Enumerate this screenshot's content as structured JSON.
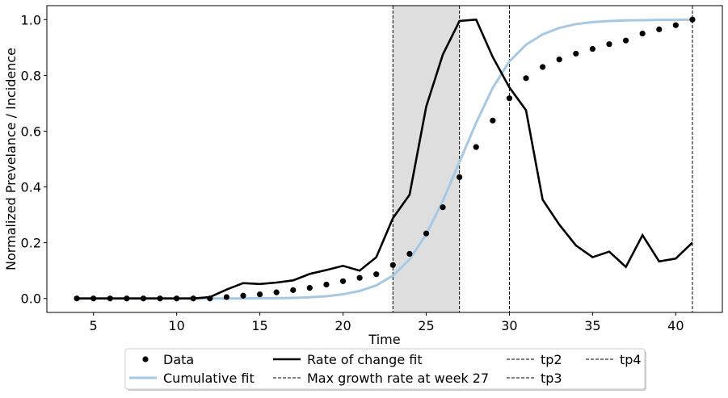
{
  "chart_data": {
    "type": "line",
    "xlabel": "Time",
    "ylabel": "Normalized Prevelance / Incidence",
    "xlim": [
      2.2,
      42.8
    ],
    "ylim": [
      -0.05,
      1.05
    ],
    "xticks": [
      5,
      10,
      15,
      20,
      25,
      30,
      35,
      40
    ],
    "yticks": [
      0.0,
      0.2,
      0.4,
      0.6,
      0.8,
      1.0
    ],
    "xtick_labels": [
      "5",
      "10",
      "15",
      "20",
      "25",
      "30",
      "35",
      "40"
    ],
    "ytick_labels": [
      "0.0",
      "0.2",
      "0.4",
      "0.6",
      "0.8",
      "1.0"
    ],
    "shaded_region": {
      "x": [
        23,
        27
      ],
      "color": "#dedede"
    },
    "vlines": [
      23,
      27,
      30,
      41
    ],
    "series": [
      {
        "name": "Data",
        "kind": "scatter",
        "color": "#000000",
        "x": [
          4,
          5,
          6,
          7,
          8,
          9,
          10,
          11,
          12,
          13,
          14,
          15,
          16,
          17,
          18,
          19,
          20,
          21,
          22,
          23,
          24,
          25,
          26,
          27,
          28,
          29,
          30,
          31,
          32,
          33,
          34,
          35,
          36,
          37,
          38,
          39,
          40,
          41
        ],
        "y": [
          0,
          0,
          0,
          0,
          0,
          0,
          0,
          0,
          0,
          0.005,
          0.01,
          0.015,
          0.022,
          0.03,
          0.038,
          0.05,
          0.062,
          0.074,
          0.087,
          0.12,
          0.16,
          0.233,
          0.327,
          0.435,
          0.543,
          0.638,
          0.718,
          0.79,
          0.83,
          0.857,
          0.878,
          0.895,
          0.912,
          0.925,
          0.95,
          0.965,
          0.98,
          1.0
        ]
      },
      {
        "name": "Cumulative fit",
        "kind": "line",
        "color": "#a6c8e2",
        "x": [
          4,
          5,
          6,
          7,
          8,
          9,
          10,
          11,
          12,
          13,
          14,
          15,
          16,
          17,
          18,
          19,
          20,
          21,
          22,
          23,
          24,
          25,
          26,
          27,
          28,
          29,
          30,
          31,
          32,
          33,
          34,
          35,
          36,
          37,
          38,
          39,
          40,
          41
        ],
        "y": [
          0,
          0,
          0,
          0,
          0,
          0,
          0,
          0,
          0,
          0,
          0,
          0.001,
          0.001,
          0.002,
          0.004,
          0.008,
          0.015,
          0.027,
          0.047,
          0.082,
          0.14,
          0.23,
          0.35,
          0.49,
          0.63,
          0.755,
          0.85,
          0.91,
          0.947,
          0.97,
          0.984,
          0.991,
          0.995,
          0.997,
          0.998,
          0.999,
          0.999,
          1.0
        ]
      },
      {
        "name": "Rate of change fit",
        "kind": "line",
        "color": "#000000",
        "x": [
          4,
          5,
          6,
          7,
          8,
          9,
          10,
          11,
          12,
          13,
          14,
          15,
          16,
          17,
          18,
          19,
          20,
          21,
          22,
          23,
          24,
          25,
          26,
          27,
          28,
          29,
          30,
          31,
          32,
          33,
          34,
          35,
          36,
          37,
          38,
          39,
          40,
          41
        ],
        "y": [
          0,
          0,
          0,
          0,
          0,
          0,
          0,
          0,
          0.005,
          0.032,
          0.055,
          0.052,
          0.057,
          0.065,
          0.088,
          0.102,
          0.117,
          0.1,
          0.148,
          0.288,
          0.372,
          0.688,
          0.875,
          0.995,
          1.0,
          0.866,
          0.757,
          0.675,
          0.354,
          0.265,
          0.19,
          0.148,
          0.168,
          0.113,
          0.227,
          0.133,
          0.143,
          0.2
        ]
      },
      {
        "name": "Max growth rate at week 27",
        "kind": "vline",
        "color": "#000000"
      },
      {
        "name": "tp2",
        "kind": "vline",
        "color": "#000000"
      },
      {
        "name": "tp3",
        "kind": "vline",
        "color": "#000000"
      },
      {
        "name": "tp4",
        "kind": "vline",
        "color": "#000000"
      }
    ],
    "legend": {
      "placement": "bottom-center-outside",
      "entries": [
        "Data",
        "Cumulative fit",
        "Rate of change fit",
        "Max growth rate at week 27",
        "tp2",
        "tp3",
        "tp4"
      ]
    }
  }
}
